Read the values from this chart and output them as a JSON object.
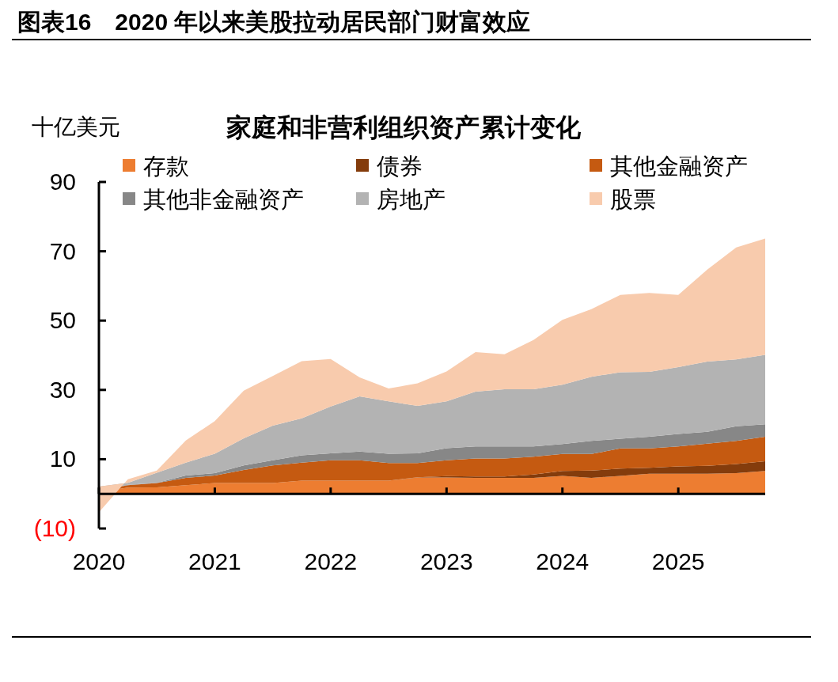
{
  "chart_data": {
    "type": "area",
    "stacked": true,
    "title": "图表16　2020 年以来美股拉动居民部门财富效应",
    "subtitle": "家庭和非营利组织资产累计变化",
    "ylabel": "十亿美元",
    "x": [
      2020,
      2020.25,
      2020.5,
      2020.75,
      2021,
      2021.25,
      2021.5,
      2021.75,
      2022,
      2022.25,
      2022.5,
      2022.75,
      2023,
      2023.25,
      2023.5,
      2023.75,
      2024,
      2024.25,
      2024.5,
      2024.75,
      2025,
      2025.25,
      2025.5,
      2025.75
    ],
    "series": [
      {
        "name": "存款",
        "color": "#ed7d31",
        "values": [
          0.5,
          1.8,
          1.9,
          2.5,
          3.1,
          3.1,
          3.1,
          3.8,
          3.8,
          3.8,
          3.8,
          4.7,
          4.7,
          4.6,
          4.6,
          4.6,
          5.2,
          4.6,
          5.2,
          5.8,
          5.8,
          5.8,
          6.0,
          6.6
        ]
      },
      {
        "name": "债券",
        "color": "#843c0c",
        "values": [
          0,
          0,
          0,
          0,
          0,
          0,
          0,
          0,
          0,
          0,
          0,
          0.1,
          0.4,
          0.4,
          0.4,
          1.0,
          1.4,
          2.1,
          2.1,
          1.7,
          2.1,
          2.3,
          2.6,
          2.8
        ]
      },
      {
        "name": "其他金融资产",
        "color": "#c55a11",
        "values": [
          0.5,
          0.7,
          1.2,
          2.1,
          2.2,
          3.8,
          5.1,
          5.2,
          5.9,
          5.9,
          5.1,
          4.1,
          4.6,
          5.2,
          5.2,
          5.1,
          4.9,
          4.8,
          5.8,
          5.6,
          5.8,
          6.4,
          6.7,
          7.1
        ]
      },
      {
        "name": "其他非金融资产",
        "color": "#878787",
        "values": [
          0.3,
          0.1,
          0.1,
          0.7,
          0.7,
          1.3,
          1.5,
          2.1,
          2.0,
          2.5,
          2.7,
          2.8,
          3.5,
          3.5,
          3.5,
          3.0,
          2.9,
          3.8,
          2.8,
          3.4,
          3.6,
          3.4,
          4.2,
          3.6
        ]
      },
      {
        "name": "房地产",
        "color": "#b3b3b3",
        "values": [
          0.8,
          0.6,
          2.9,
          3.7,
          5.6,
          7.8,
          10.0,
          10.7,
          13.5,
          15.9,
          15.1,
          13.7,
          13.5,
          15.8,
          16.5,
          16.5,
          17.1,
          18.5,
          19.2,
          18.7,
          19.3,
          20.3,
          19.3,
          20.0
        ]
      },
      {
        "name": "股票",
        "color": "#f8cbad",
        "values": [
          -7.4,
          1.0,
          0.6,
          6.4,
          9.4,
          13.8,
          14.3,
          16.5,
          13.7,
          5.5,
          3.7,
          6.5,
          8.6,
          11.4,
          10.1,
          14.2,
          18.7,
          19.5,
          22.3,
          22.8,
          20.8,
          26.5,
          32.3,
          33.6
        ]
      }
    ],
    "xlim": [
      2020,
      2025.75
    ],
    "xticks": [
      2020,
      2021,
      2022,
      2023,
      2024,
      2025
    ],
    "ylim": [
      -10,
      90
    ],
    "yticks": [
      {
        "value": -10,
        "label": "(10)"
      },
      10,
      30,
      50,
      70,
      90
    ],
    "legend": "top",
    "grid": false
  }
}
